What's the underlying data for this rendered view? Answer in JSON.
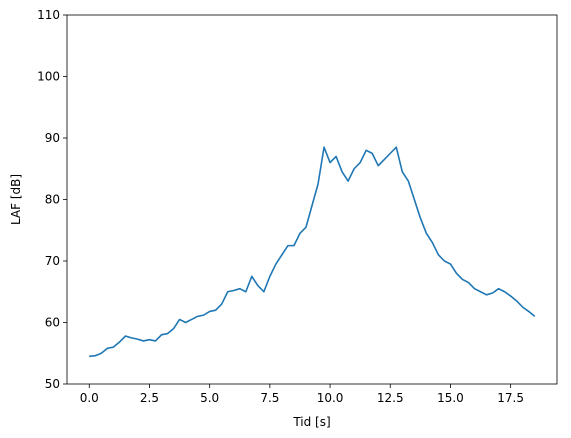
{
  "chart_data": {
    "type": "line",
    "xlabel": "Tid [s]",
    "ylabel": "LAF [dB]",
    "x": [
      0,
      0.25,
      0.5,
      0.75,
      1,
      1.25,
      1.5,
      1.75,
      2,
      2.25,
      2.5,
      2.75,
      3,
      3.25,
      3.5,
      3.75,
      4,
      4.25,
      4.5,
      4.75,
      5,
      5.25,
      5.5,
      5.75,
      6,
      6.25,
      6.5,
      6.75,
      7,
      7.25,
      7.5,
      7.75,
      8,
      8.25,
      8.5,
      8.75,
      9,
      9.25,
      9.5,
      9.75,
      10,
      10.25,
      10.5,
      10.75,
      11,
      11.25,
      11.5,
      11.75,
      12,
      12.25,
      12.5,
      12.75,
      13,
      13.25,
      13.5,
      13.75,
      14,
      14.25,
      14.5,
      14.75,
      15,
      15.25,
      15.5,
      15.75,
      16,
      16.25,
      16.5,
      16.75,
      17,
      17.25,
      17.5,
      17.75,
      18,
      18.25,
      18.5
    ],
    "series": [
      {
        "color": "#1f77b4",
        "values": [
          54.5,
          54.6,
          55,
          55.8,
          56,
          56.8,
          57.8,
          57.5,
          57.3,
          57,
          57.2,
          57,
          58,
          58.2,
          59,
          60.5,
          60,
          60.5,
          61,
          61.2,
          61.8,
          62,
          63,
          65,
          65.2,
          65.5,
          65,
          67.5,
          66,
          65,
          67.5,
          69.5,
          71,
          72.5,
          72.5,
          74.5,
          75.5,
          79,
          82.5,
          88.5,
          86,
          87,
          84.5,
          83,
          85,
          86,
          88,
          87.5,
          85.5,
          86.5,
          87.5,
          88.5,
          84.5,
          83,
          80,
          77,
          74.5,
          73,
          71,
          70,
          69.5,
          68,
          67,
          66.5,
          65.5,
          65,
          64.5,
          64.8,
          65.5,
          65,
          64.3,
          63.5,
          62.5,
          61.8,
          61
        ]
      }
    ],
    "xlim": [
      -0.925,
      19.425
    ],
    "xticks": [
      {
        "value": 0,
        "label": "0.0"
      },
      2.5,
      {
        "value": 5,
        "label": "5.0"
      },
      7.5,
      {
        "value": 10,
        "label": "10.0"
      },
      12.5,
      {
        "value": 15,
        "label": "15.0"
      },
      17.5
    ],
    "ylim": [
      50,
      110
    ],
    "yticks": [
      50,
      60,
      70,
      80,
      90,
      100,
      110
    ]
  }
}
